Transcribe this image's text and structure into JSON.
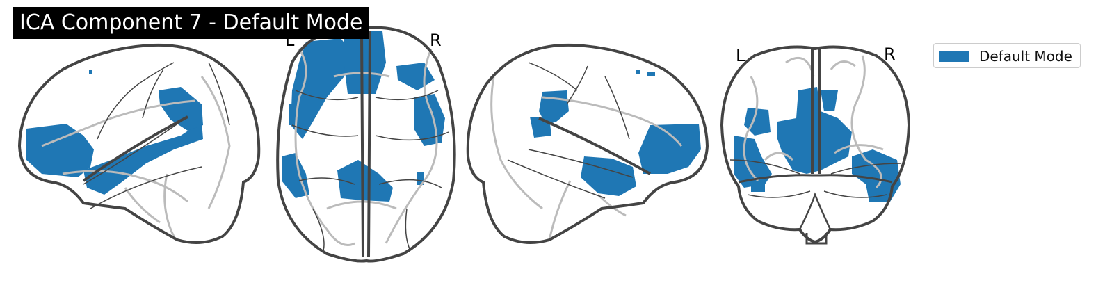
{
  "title": "ICA Component 7 - Default Mode",
  "legend": {
    "label": "Default Mode",
    "color": "#1f77b4"
  },
  "views": {
    "sagittal_left": {
      "orientation": []
    },
    "axial": {
      "orientation": [
        "L",
        "R"
      ]
    },
    "sagittal_right": {
      "orientation": []
    },
    "coronal": {
      "orientation": [
        "L",
        "R"
      ]
    }
  },
  "colors": {
    "outline": "#444444",
    "sulci": "#bbbbbb",
    "blob": "#1f77b4"
  }
}
